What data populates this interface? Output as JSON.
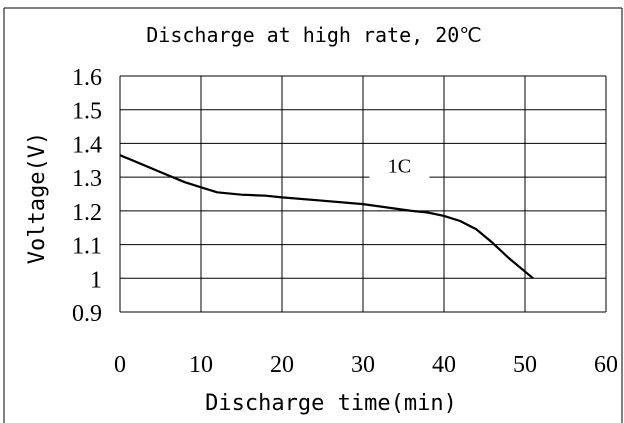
{
  "chart_data": {
    "type": "line",
    "title": "Discharge at high rate, 20℃",
    "xlabel": "Discharge time(min)",
    "ylabel": "Voltage(V)",
    "xlim": [
      0,
      60
    ],
    "ylim": [
      0.9,
      1.6
    ],
    "x_ticks": [
      0,
      10,
      20,
      30,
      40,
      50,
      60
    ],
    "x_tick_labels": [
      "0",
      "10",
      "20",
      "30",
      "40",
      "50",
      "60"
    ],
    "y_ticks": [
      1.6,
      1.5,
      1.4,
      1.3,
      1.2,
      1.1,
      1.0,
      0.9
    ],
    "y_tick_labels": [
      "1.6",
      "1.5",
      "1.4",
      "1.3",
      "1.2",
      "1.1",
      "1",
      "0.9"
    ],
    "grid": true,
    "series": [
      {
        "name": "1C",
        "x": [
          0,
          3,
          5,
          8,
          10,
          12,
          15,
          18,
          20,
          25,
          30,
          33,
          36,
          38,
          40,
          42,
          44,
          46,
          48,
          51
        ],
        "y": [
          1.365,
          1.335,
          1.315,
          1.285,
          1.27,
          1.255,
          1.248,
          1.245,
          1.24,
          1.23,
          1.22,
          1.21,
          1.2,
          1.195,
          1.185,
          1.17,
          1.145,
          1.105,
          1.06,
          1.0
        ]
      }
    ],
    "annotations": [
      {
        "text": "1C",
        "x": 34.5,
        "y": 1.34
      }
    ],
    "colors": {
      "line": "#000000",
      "grid": "#000000",
      "frame": "#000000"
    }
  }
}
